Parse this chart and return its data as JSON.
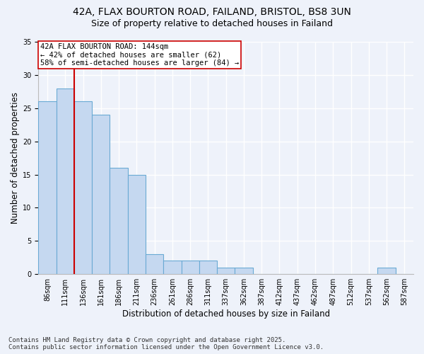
{
  "title_line1": "42A, FLAX BOURTON ROAD, FAILAND, BRISTOL, BS8 3UN",
  "title_line2": "Size of property relative to detached houses in Failand",
  "xlabel": "Distribution of detached houses by size in Failand",
  "ylabel": "Number of detached properties",
  "categories": [
    "86sqm",
    "111sqm",
    "136sqm",
    "161sqm",
    "186sqm",
    "211sqm",
    "236sqm",
    "261sqm",
    "286sqm",
    "311sqm",
    "337sqm",
    "362sqm",
    "387sqm",
    "412sqm",
    "437sqm",
    "462sqm",
    "487sqm",
    "512sqm",
    "537sqm",
    "562sqm",
    "587sqm"
  ],
  "values": [
    26,
    28,
    26,
    24,
    16,
    15,
    3,
    2,
    2,
    2,
    1,
    1,
    0,
    0,
    0,
    0,
    0,
    0,
    0,
    1,
    0
  ],
  "bar_color": "#c5d8f0",
  "bar_edge_color": "#6aaad4",
  "background_color": "#eef2fa",
  "grid_color": "#ffffff",
  "vline_color": "#cc0000",
  "vline_pos": 1.5,
  "annotation_text": "42A FLAX BOURTON ROAD: 144sqm\n← 42% of detached houses are smaller (62)\n58% of semi-detached houses are larger (84) →",
  "annotation_box_facecolor": "#ffffff",
  "annotation_box_edgecolor": "#cc0000",
  "ylim": [
    0,
    35
  ],
  "yticks": [
    0,
    5,
    10,
    15,
    20,
    25,
    30,
    35
  ],
  "title_fontsize": 10,
  "subtitle_fontsize": 9,
  "axis_label_fontsize": 8.5,
  "tick_fontsize": 7,
  "annot_fontsize": 7.5,
  "footnote_fontsize": 6.5,
  "footnote": "Contains HM Land Registry data © Crown copyright and database right 2025.\nContains public sector information licensed under the Open Government Licence v3.0."
}
